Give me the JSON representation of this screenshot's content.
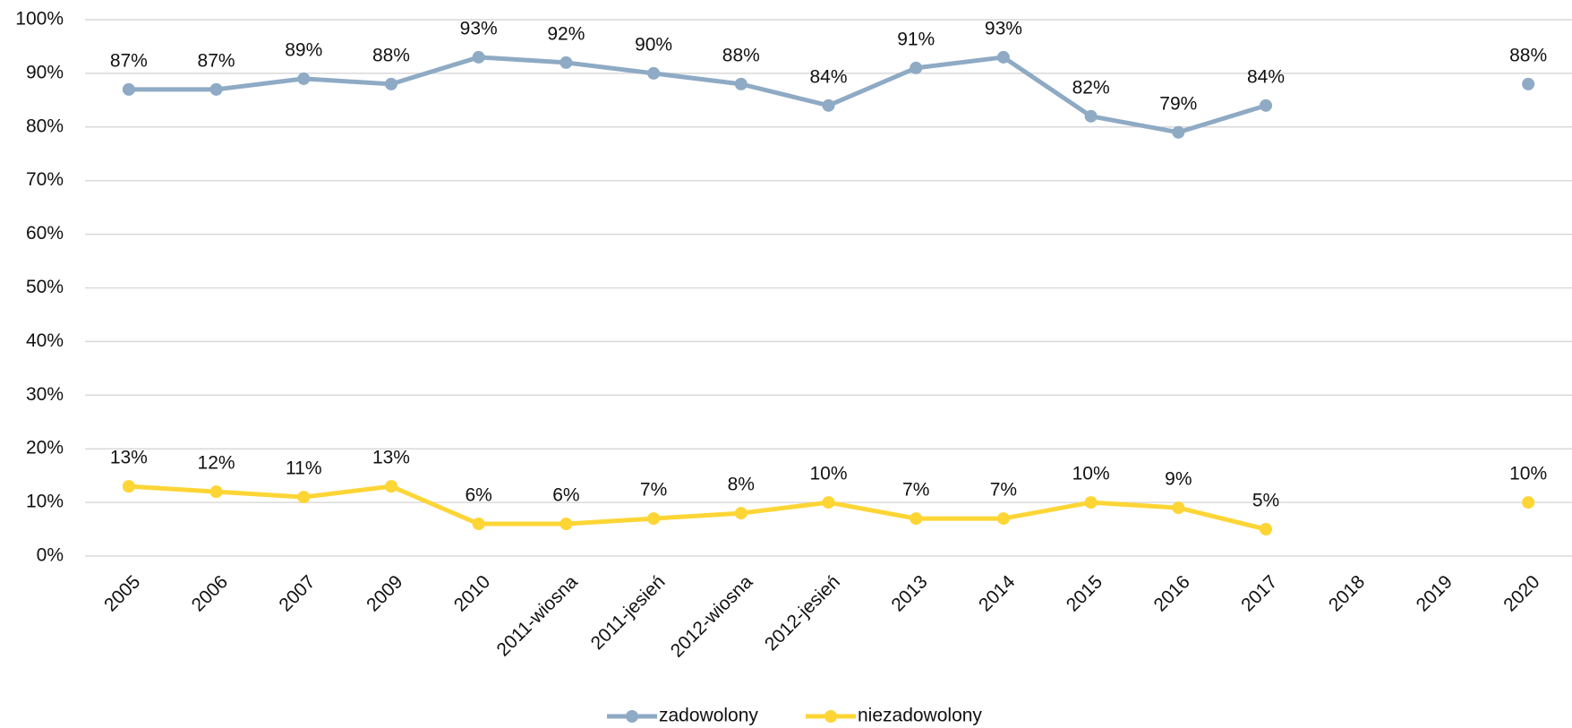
{
  "chart_data": {
    "type": "line",
    "categories": [
      "2005",
      "2006",
      "2007",
      "2009",
      "2010",
      "2011-wiosna",
      "2011-jesień",
      "2012-wiosna",
      "2012-jesień",
      "2013",
      "2014",
      "2015",
      "2016",
      "2017",
      "2018",
      "2019",
      "2020"
    ],
    "series": [
      {
        "name": "zadowolony",
        "color": "#8eaac4",
        "values": [
          87,
          87,
          89,
          88,
          93,
          92,
          90,
          88,
          84,
          91,
          93,
          82,
          79,
          84,
          null,
          null,
          88
        ],
        "value_labels": [
          "87%",
          "87%",
          "89%",
          "88%",
          "93%",
          "92%",
          "90%",
          "88%",
          "84%",
          "91%",
          "93%",
          "82%",
          "79%",
          "84%",
          null,
          null,
          "88%"
        ]
      },
      {
        "name": "niezadowolony",
        "color": "#fdd535",
        "values": [
          13,
          12,
          11,
          13,
          6,
          6,
          7,
          8,
          10,
          7,
          7,
          10,
          9,
          5,
          null,
          null,
          10
        ],
        "value_labels": [
          "13%",
          "12%",
          "11%",
          "13%",
          "6%",
          "6%",
          "7%",
          "8%",
          "10%",
          "7%",
          "7%",
          "10%",
          "9%",
          "5%",
          null,
          null,
          "10%"
        ]
      }
    ],
    "ylim": [
      0,
      100
    ],
    "yticks": [
      {
        "value": 0,
        "label": "0%"
      },
      {
        "value": 10,
        "label": "10%"
      },
      {
        "value": 20,
        "label": "20%"
      },
      {
        "value": 30,
        "label": "30%"
      },
      {
        "value": 40,
        "label": "40%"
      },
      {
        "value": 50,
        "label": "50%"
      },
      {
        "value": 60,
        "label": "60%"
      },
      {
        "value": 70,
        "label": "70%"
      },
      {
        "value": 80,
        "label": "80%"
      },
      {
        "value": 90,
        "label": "90%"
      },
      {
        "value": 100,
        "label": "100%"
      }
    ],
    "grid": true,
    "legend": "bottom"
  }
}
